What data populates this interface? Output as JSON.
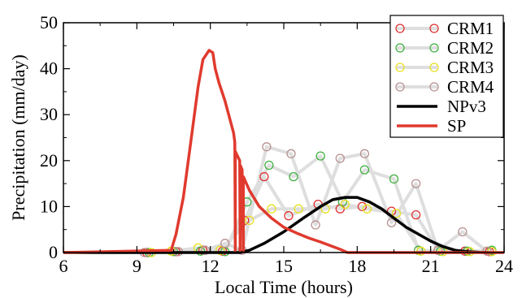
{
  "chart_data": {
    "type": "line",
    "xlabel": "Local Time (hours)",
    "ylabel": "Precipitation (mm/day)",
    "xlim": [
      6,
      24
    ],
    "ylim": [
      0,
      50
    ],
    "x_ticks": [
      6,
      9,
      12,
      15,
      18,
      21,
      24
    ],
    "x_tick_labels": [
      "6",
      "9",
      "12",
      "15",
      "18",
      "21",
      "24"
    ],
    "y_ticks": [
      0,
      10,
      20,
      30,
      40,
      50
    ],
    "y_tick_labels": [
      "0",
      "10",
      "20",
      "30",
      "40",
      "50"
    ],
    "legend_position": "top-right",
    "series": [
      {
        "name": "CRM1",
        "style": "markers-with-gray-line",
        "color": "#e03030",
        "x": [
          6.0,
          9.4,
          10.6,
          11.7,
          12.5,
          13.4,
          14.2,
          15.2,
          16.4,
          17.3,
          18.2,
          19.4,
          20.4,
          21.3,
          22.4,
          23.4
        ],
        "y": [
          0,
          0,
          0.2,
          0.5,
          0.3,
          7.0,
          16.5,
          8.0,
          10.5,
          9.5,
          10.0,
          9.0,
          8.2,
          0.5,
          0.3,
          0.2
        ]
      },
      {
        "name": "CRM2",
        "style": "markers-with-gray-line",
        "color": "#40b040",
        "x": [
          6.0,
          9.5,
          10.5,
          11.6,
          12.6,
          13.5,
          14.4,
          15.4,
          16.5,
          17.4,
          18.3,
          19.5,
          20.5,
          21.4,
          22.5,
          23.5
        ],
        "y": [
          0,
          0,
          0.2,
          0.3,
          0.2,
          11.0,
          19.0,
          16.5,
          21.0,
          11.0,
          18.0,
          16.0,
          0.5,
          0.3,
          0.3,
          0.5
        ]
      },
      {
        "name": "CRM3",
        "style": "markers-with-gray-line",
        "color": "#e8e020",
        "x": [
          6.0,
          9.6,
          10.4,
          11.5,
          12.4,
          13.6,
          14.5,
          15.6,
          16.7,
          17.5,
          18.4,
          19.6,
          20.6,
          21.5,
          22.6,
          23.5
        ],
        "y": [
          0,
          0,
          0.3,
          1.0,
          0.5,
          7.0,
          9.5,
          9.5,
          9.5,
          10.5,
          9.5,
          8.5,
          0.3,
          0.2,
          0.2,
          0.2
        ]
      },
      {
        "name": "CRM4",
        "style": "markers-with-gray-line",
        "color": "#b89090",
        "x": [
          6.0,
          9.3,
          10.7,
          11.8,
          12.6,
          13.3,
          14.3,
          15.3,
          16.3,
          17.3,
          18.3,
          19.4,
          20.4,
          21.3,
          22.3,
          23.3
        ],
        "y": [
          0,
          0,
          0.2,
          0.5,
          2.0,
          0.5,
          23.0,
          21.5,
          6.0,
          20.5,
          21.5,
          6.5,
          15.0,
          0.5,
          4.5,
          0.3
        ]
      },
      {
        "name": "NPv3",
        "style": "line",
        "color": "#000000",
        "x": [
          6,
          12,
          13.2,
          13.6,
          14.2,
          15.0,
          15.8,
          16.5,
          17.0,
          17.5,
          18.0,
          18.5,
          19.0,
          19.5,
          20.0,
          20.5,
          21.0,
          21.5,
          22.0,
          22.5,
          23.0,
          23.4
        ],
        "y": [
          0,
          0,
          0,
          0.5,
          2.0,
          4.5,
          7.5,
          10.0,
          11.5,
          12.0,
          12.0,
          11.0,
          9.5,
          7.5,
          5.5,
          4.0,
          2.5,
          1.3,
          0.5,
          0.2,
          0.05,
          0
        ]
      },
      {
        "name": "SP",
        "style": "line",
        "color": "#e03a2e",
        "x": [
          6,
          10.4,
          10.6,
          10.9,
          11.2,
          11.5,
          11.7,
          11.95,
          12.1,
          12.2,
          12.35,
          12.6,
          12.95,
          13.0,
          13.02,
          13.02,
          13.2,
          13.22,
          13.22,
          13.3,
          13.35,
          13.35,
          13.6,
          14.0,
          14.5,
          15.0,
          15.5,
          16.0,
          16.5,
          17.0,
          17.3,
          17.6,
          24
        ],
        "y": [
          0,
          0.5,
          4.0,
          12.0,
          24.0,
          36.0,
          42.0,
          44.0,
          43.5,
          40.0,
          37.0,
          33.0,
          26.0,
          24.0,
          0.5,
          22.0,
          20.0,
          0.5,
          19.0,
          18.0,
          0.5,
          16.5,
          13.5,
          10.0,
          7.5,
          5.5,
          4.3,
          3.2,
          2.3,
          1.3,
          0.7,
          0,
          0
        ]
      }
    ]
  }
}
